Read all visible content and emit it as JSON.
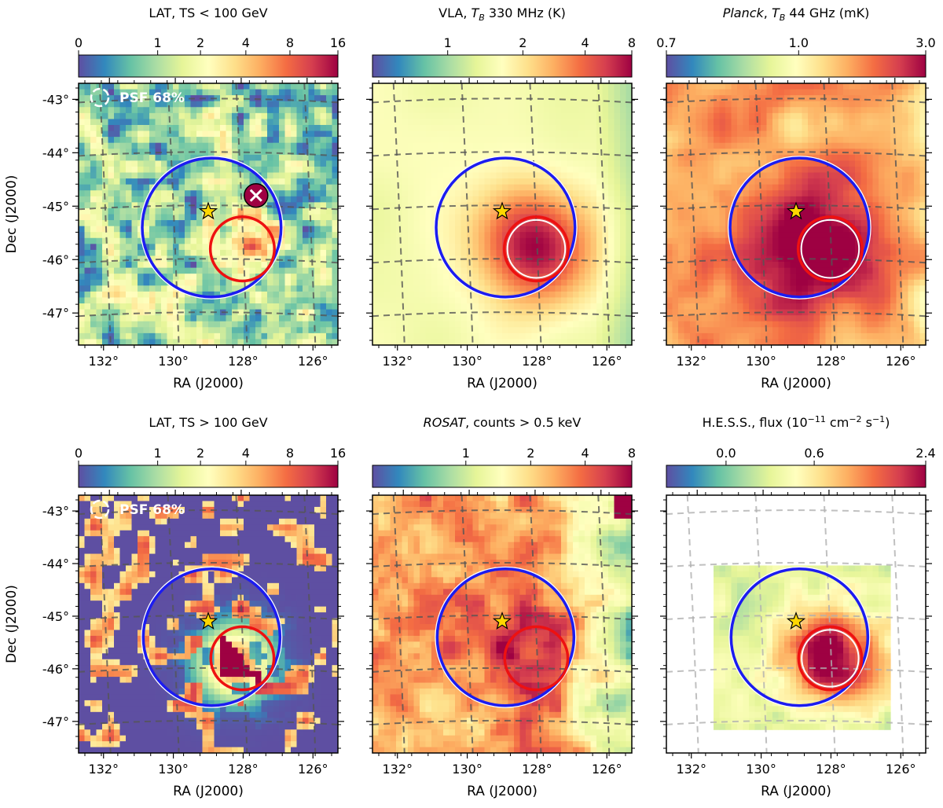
{
  "figure": {
    "panels": [
      {
        "id": "lat-low",
        "map_style": "lat",
        "colorbar": {
          "title_plain": "LAT, TS < 100 GeV",
          "title_parts": [
            {
              "text": "LAT, TS < 100 GeV",
              "style": "normal"
            }
          ],
          "tick_labels": [
            "0",
            "1",
            "2",
            "4",
            "8",
            "16"
          ],
          "tick_fractions": [
            0.0,
            0.305,
            0.47,
            0.645,
            0.815,
            1.0
          ]
        },
        "psf_label": "PSF 68%",
        "cross_marker": true,
        "hot_spot": {
          "ra": 128.0,
          "dec": -45.8,
          "intensity": 0.7
        }
      },
      {
        "id": "vla",
        "map_style": "vla",
        "colorbar": {
          "title_plain": "VLA, T_B 330 MHz (K)",
          "title_parts": [
            {
              "text": "VLA, ",
              "style": "normal"
            },
            {
              "text": "T",
              "style": "italic"
            },
            {
              "text": "B",
              "style": "sub-italic"
            },
            {
              "text": " 330 MHz (K)",
              "style": "normal"
            }
          ],
          "tick_labels": [
            "1",
            "2",
            "4",
            "8"
          ],
          "tick_fractions": [
            0.29,
            0.58,
            0.82,
            1.0
          ]
        },
        "white_ring": true,
        "hot_spot": {
          "ra": 128.0,
          "dec": -45.8,
          "intensity": 1.0
        }
      },
      {
        "id": "planck",
        "map_style": "planck",
        "colorbar": {
          "title_plain": "Planck, T_B 44 GHz (mK)",
          "title_parts": [
            {
              "text": "Planck",
              "style": "italic"
            },
            {
              "text": ", ",
              "style": "normal"
            },
            {
              "text": "T",
              "style": "italic"
            },
            {
              "text": "B",
              "style": "sub-italic"
            },
            {
              "text": " 44 GHz (mK)",
              "style": "normal"
            }
          ],
          "tick_labels": [
            "0.7",
            "1.0",
            "3.0"
          ],
          "tick_fractions": [
            0.0,
            0.51,
            1.0
          ]
        },
        "white_ring": true,
        "hot_spot": {
          "ra": 128.0,
          "dec": -45.8,
          "intensity": 0.8
        }
      },
      {
        "id": "lat-high",
        "map_style": "lat-high",
        "colorbar": {
          "title_plain": "LAT, TS > 100 GeV",
          "title_parts": [
            {
              "text": "LAT, TS > 100 GeV",
              "style": "normal"
            }
          ],
          "tick_labels": [
            "0",
            "1",
            "2",
            "4",
            "8",
            "16"
          ],
          "tick_fractions": [
            0.0,
            0.305,
            0.47,
            0.645,
            0.815,
            1.0
          ]
        },
        "psf_label": "PSF 68%",
        "hot_spot": {
          "ra": 128.2,
          "dec": -45.9,
          "intensity": 0.9
        }
      },
      {
        "id": "rosat",
        "map_style": "rosat",
        "colorbar": {
          "title_plain": "ROSAT, counts > 0.5 keV",
          "title_parts": [
            {
              "text": "ROSAT",
              "style": "italic"
            },
            {
              "text": ", counts > 0.5 keV",
              "style": "normal"
            }
          ],
          "tick_labels": [
            "1",
            "2",
            "4",
            "8"
          ],
          "tick_fractions": [
            0.36,
            0.61,
            0.82,
            1.0
          ]
        },
        "hot_spot": {
          "ra": 128.3,
          "dec": -45.6,
          "intensity": 0.6
        }
      },
      {
        "id": "hess",
        "map_style": "hess",
        "colorbar": {
          "title_plain": "H.E.S.S., flux (10^-11 cm^-2 s^-1)",
          "title_parts": [
            {
              "text": "H.E.S.S., flux (10",
              "style": "normal"
            },
            {
              "text": "−11",
              "style": "sup"
            },
            {
              "text": " cm",
              "style": "normal"
            },
            {
              "text": "−2",
              "style": "sup"
            },
            {
              "text": " s",
              "style": "normal"
            },
            {
              "text": "−1",
              "style": "sup"
            },
            {
              "text": ")",
              "style": "normal"
            }
          ],
          "tick_labels": [
            "0.0",
            "0.6",
            "2.4"
          ],
          "tick_fractions": [
            0.23,
            0.57,
            1.0
          ]
        },
        "white_ring": true,
        "hess_footprint": true,
        "hot_spot": {
          "ra": 128.0,
          "dec": -45.8,
          "intensity": 1.0
        }
      }
    ],
    "axes": {
      "xlabel": "RA (J2000)",
      "ylabel": "Dec (J2000)",
      "x_tick_labels": [
        "132°",
        "130°",
        "128°",
        "126°"
      ],
      "x_tick_values": [
        132,
        130,
        128,
        126
      ],
      "y_tick_labels": [
        "-43°",
        "-44°",
        "-45°",
        "-46°",
        "-47°"
      ],
      "y_tick_values": [
        -43,
        -44,
        -45,
        -46,
        -47
      ],
      "ra_range": [
        132.8,
        125.2
      ],
      "dec_range": [
        -47.6,
        -42.7
      ]
    },
    "overlays": {
      "blue_circle": {
        "ra": 128.9,
        "dec": -45.4,
        "radius_deg": 1.3,
        "color": "#1c1cf0"
      },
      "red_circle": {
        "ra": 128.0,
        "dec": -45.8,
        "radius_deg": 0.6,
        "color": "#ee1111"
      },
      "star": {
        "ra": 129.0,
        "dec": -45.1,
        "color": "#ffd700"
      },
      "cross": {
        "ra": 127.6,
        "dec": -44.8
      }
    }
  }
}
